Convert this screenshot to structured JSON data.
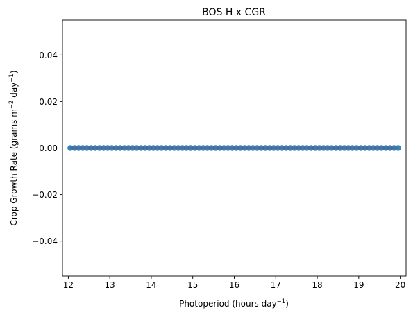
{
  "chart_data": {
    "type": "scatter",
    "title": "BOS H x CGR",
    "xlabel": {
      "text": "Photoperiod (hours day",
      "sup": "−1",
      "tail": ")"
    },
    "ylabel": {
      "text": "Crop Growth Rate (grams m",
      "sup1": "−2",
      "mid": " day",
      "sup2": "−1",
      "tail": ")"
    },
    "xlim": [
      11.86,
      20.14
    ],
    "ylim": [
      -0.055,
      0.055
    ],
    "xticks": [
      12,
      13,
      14,
      15,
      16,
      17,
      18,
      19,
      20
    ],
    "xtick_labels": [
      "12",
      "13",
      "14",
      "15",
      "16",
      "17",
      "18",
      "19",
      "20"
    ],
    "yticks": [
      -0.04,
      -0.02,
      0.0,
      0.02,
      0.04
    ],
    "ytick_labels": [
      "−0.04",
      "−0.02",
      "0.00",
      "0.02",
      "0.04"
    ],
    "grid": false,
    "series": [
      {
        "kind": "scatter",
        "color": "#1f77b4",
        "x_start": 12.05,
        "x_end": 19.95,
        "x_step": 0.1,
        "y": 0.0
      },
      {
        "kind": "line",
        "color": "#d62728",
        "x": [
          12.05,
          19.95
        ],
        "y": [
          0.0,
          0.0
        ]
      }
    ]
  }
}
